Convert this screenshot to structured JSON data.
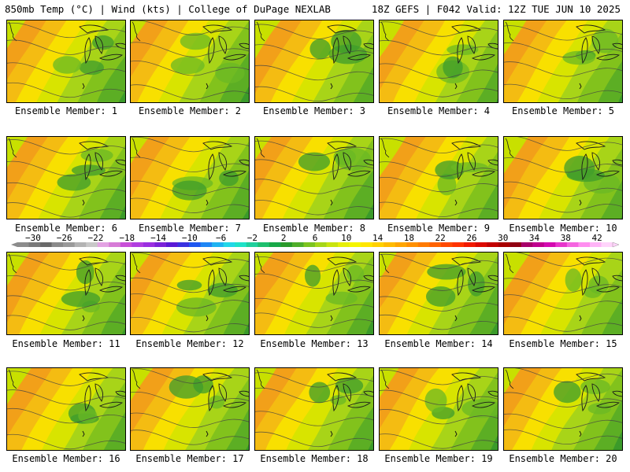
{
  "header": {
    "title_left": "850mb Temp (°C) | Wind (kts) | College of DuPage NEXLAB",
    "title_right": "18Z GEFS | F042 Valid: 12Z TUE JUN 10 2025"
  },
  "members": [
    {
      "label": "Ensemble Member: 1"
    },
    {
      "label": "Ensemble Member: 2"
    },
    {
      "label": "Ensemble Member: 3"
    },
    {
      "label": "Ensemble Member: 4"
    },
    {
      "label": "Ensemble Member: 5"
    },
    {
      "label": "Ensemble Member: 6"
    },
    {
      "label": "Ensemble Member: 7"
    },
    {
      "label": "Ensemble Member: 8"
    },
    {
      "label": "Ensemble Member: 9"
    },
    {
      "label": "Ensemble Member: 10"
    },
    {
      "label": "Ensemble Member: 11"
    },
    {
      "label": "Ensemble Member: 12"
    },
    {
      "label": "Ensemble Member: 13"
    },
    {
      "label": "Ensemble Member: 14"
    },
    {
      "label": "Ensemble Member: 15"
    },
    {
      "label": "Ensemble Member: 16"
    },
    {
      "label": "Ensemble Member: 17"
    },
    {
      "label": "Ensemble Member: 18"
    },
    {
      "label": "Ensemble Member: 19"
    },
    {
      "label": "Ensemble Member: 20"
    }
  ],
  "colorbar": {
    "tick_labels": [
      "-30",
      "-26",
      "-22",
      "-18",
      "-14",
      "-10",
      "-6",
      "-2",
      "2",
      "6",
      "10",
      "14",
      "18",
      "22",
      "26",
      "30",
      "34",
      "38",
      "42"
    ],
    "min": -32,
    "max": 44,
    "colors": [
      "#8c8c8c",
      "#7a7a7a",
      "#696969",
      "#8a8a8a",
      "#9a9a9a",
      "#b3b3b3",
      "#c8c8c8",
      "#e3a3e3",
      "#d77bd7",
      "#c84fd8",
      "#b13ee0",
      "#9b2fe0",
      "#7b22d8",
      "#5a1ad6",
      "#3a32e0",
      "#1f56f0",
      "#1f86f5",
      "#1fb3f2",
      "#22d7e8",
      "#1fe2c8",
      "#1fd09c",
      "#1ebf6e",
      "#18a848",
      "#2a9a2a",
      "#4fae2a",
      "#7cc41f",
      "#a6d619",
      "#c9e40f",
      "#e6ef08",
      "#f5f500",
      "#ffe600",
      "#ffd100",
      "#ffbb00",
      "#ffa500",
      "#ff9000",
      "#ff7a00",
      "#ff6200",
      "#ff4a00",
      "#ff3300",
      "#f21a00",
      "#dc0a00",
      "#c20000",
      "#a80000",
      "#900012",
      "#a8006a",
      "#c0008e",
      "#d40ab0",
      "#e836cc",
      "#f565e0",
      "#ff8ef0",
      "#ffb3f7",
      "#ffd4fb"
    ]
  }
}
